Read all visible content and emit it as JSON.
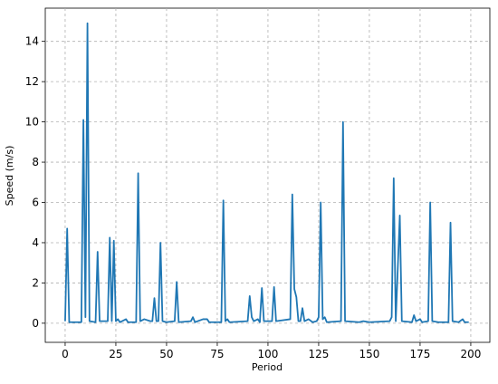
{
  "chart_data": {
    "type": "line",
    "xlabel": "Period",
    "ylabel": "Speed (m/s)",
    "x": [
      0,
      1,
      2,
      8,
      9,
      10,
      11,
      12,
      15,
      16,
      17,
      21,
      22,
      23,
      24,
      25,
      26,
      27,
      30,
      31,
      35,
      36,
      37,
      39,
      42,
      43,
      44,
      45,
      46,
      47,
      48,
      50,
      54,
      55,
      56,
      62,
      63,
      64,
      68,
      70,
      71,
      77,
      78,
      79,
      80,
      81,
      90,
      91,
      92,
      93,
      95,
      96,
      97,
      98,
      102,
      103,
      104,
      111,
      112,
      113,
      114,
      115,
      116,
      117,
      118,
      120,
      122,
      124,
      125,
      126,
      127,
      128,
      129,
      136,
      137,
      138,
      145,
      147,
      150,
      160,
      161,
      162,
      163,
      165,
      166,
      171,
      172,
      173,
      175,
      176,
      179,
      180,
      181,
      184,
      189,
      190,
      191,
      194,
      196,
      197,
      199
    ],
    "series": [
      {
        "name": "Speed",
        "color": "#1f77b4",
        "values": [
          0.1,
          4.7,
          0.05,
          0.05,
          10.1,
          0.3,
          14.9,
          0.1,
          0.05,
          3.55,
          0.1,
          0.1,
          4.25,
          0.1,
          4.1,
          0.1,
          0.2,
          0.05,
          0.2,
          0.05,
          0.05,
          7.45,
          0.1,
          0.2,
          0.1,
          0.1,
          1.25,
          0.1,
          0.1,
          4.0,
          0.1,
          0.05,
          0.1,
          2.05,
          0.05,
          0.1,
          0.3,
          0.05,
          0.2,
          0.2,
          0.05,
          0.05,
          6.1,
          0.1,
          0.2,
          0.05,
          0.1,
          1.35,
          0.3,
          0.1,
          0.2,
          0.05,
          1.75,
          0.1,
          0.1,
          1.8,
          0.1,
          0.2,
          6.4,
          1.7,
          1.3,
          0.1,
          0.1,
          0.75,
          0.1,
          0.2,
          0.05,
          0.1,
          0.3,
          6.0,
          0.2,
          0.3,
          0.05,
          0.1,
          10.0,
          0.1,
          0.05,
          0.1,
          0.05,
          0.1,
          0.3,
          7.2,
          0.1,
          5.35,
          0.1,
          0.05,
          0.4,
          0.1,
          0.2,
          0.05,
          0.1,
          6.0,
          0.1,
          0.05,
          0.05,
          5.0,
          0.1,
          0.05,
          0.2,
          0.05,
          0.05
        ]
      }
    ],
    "xlim": [
      -9.8,
      209.4
    ],
    "ylim": [
      -0.95,
      15.65
    ],
    "xticks": [
      0,
      25,
      50,
      75,
      100,
      125,
      150,
      175,
      200
    ],
    "yticks": [
      0,
      2,
      4,
      6,
      8,
      10,
      12,
      14
    ],
    "grid": true
  }
}
